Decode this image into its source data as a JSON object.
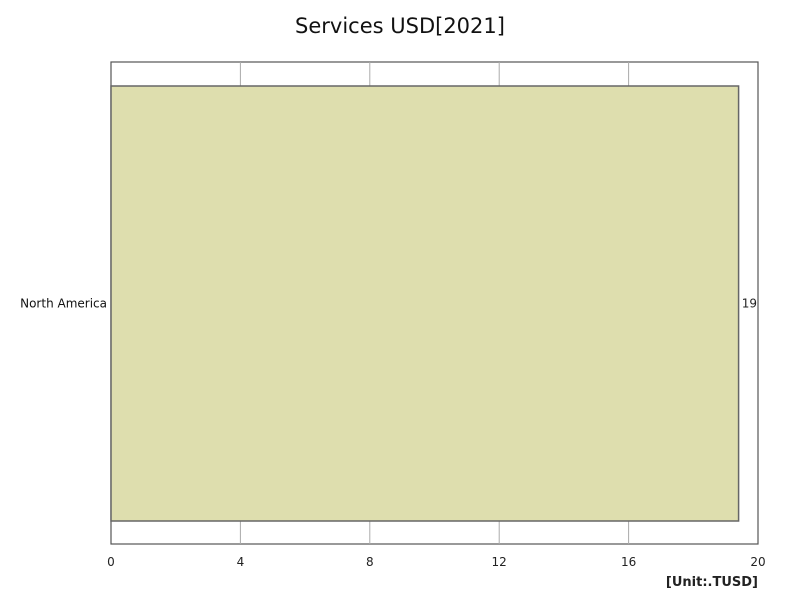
{
  "chart_data": {
    "type": "bar",
    "orientation": "horizontal",
    "title": "Services USD[2021]",
    "categories": [
      "North America"
    ],
    "values": [
      19.4
    ],
    "value_labels": [
      "19"
    ],
    "xlim": [
      0,
      20
    ],
    "xticks": [
      0,
      4,
      8,
      12,
      16,
      20
    ],
    "unit": "[Unit:.TUSD]",
    "grid": true,
    "bar_color": "#dedeae",
    "bar_edge_color": "#666666"
  }
}
